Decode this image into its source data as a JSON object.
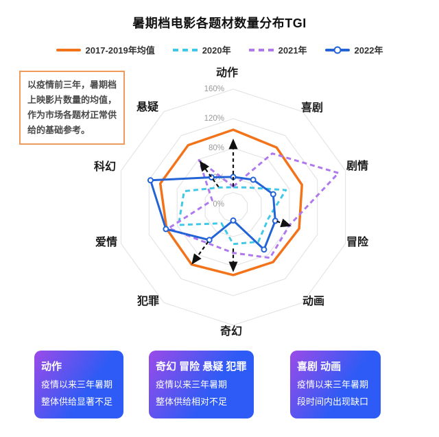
{
  "header": {
    "title": "暑期档电影各题材数量分布TGI"
  },
  "note": {
    "text": "以疫情前三年，暑期档上映影片数量的均值，作为市场各题材正常供给的基础参考。"
  },
  "legend": [
    {
      "label": "2017-2019年均值",
      "color": "#F2731A",
      "style": "solid"
    },
    {
      "label": "2020年",
      "color": "#41C8E8",
      "style": "dashed"
    },
    {
      "label": "2021年",
      "color": "#AE79EC",
      "style": "dashed"
    },
    {
      "label": "2022年",
      "color": "#2363D6",
      "style": "solid-marker"
    }
  ],
  "chart_data": {
    "type": "line",
    "subtype": "radar",
    "title": "暑期档电影各题材数量分布TGI",
    "categories": [
      "动作",
      "喜剧",
      "剧情",
      "冒险",
      "动画",
      "奇幻",
      "犯罪",
      "爱情",
      "科幻",
      "悬疑"
    ],
    "radial_ticks": [
      "0%",
      "40%",
      "80%",
      "120%",
      "160%"
    ],
    "radial_tick_values": [
      0,
      40,
      80,
      120,
      160
    ],
    "rmax": 160,
    "grid": "on",
    "legend_position": "top",
    "series": [
      {
        "name": "2017-2019年均值",
        "color": "#F2731A",
        "line": "solid",
        "marker": "none",
        "values": [
          105,
          100,
          98,
          94,
          92,
          92,
          96,
          95,
          104,
          104
        ]
      },
      {
        "name": "2020年",
        "color": "#41C8E8",
        "line": "dashed",
        "marker": "none",
        "values": [
          27,
          33,
          75,
          50,
          58,
          50,
          27,
          78,
          70,
          33
        ]
      },
      {
        "name": "2021年",
        "color": "#AE79EC",
        "line": "dashed",
        "marker": "none",
        "values": [
          28,
          90,
          150,
          80,
          85,
          62,
          60,
          92,
          30,
          79
        ]
      },
      {
        "name": "2022年",
        "color": "#2363D6",
        "line": "solid",
        "marker": "circle",
        "values": [
          41,
          46,
          57,
          60,
          71,
          18,
          55,
          96,
          118,
          50
        ]
      }
    ],
    "annotations": {
      "arrows": [
        {
          "category": "动作",
          "from": 28,
          "to": 90
        },
        {
          "category": "悬疑",
          "from": 34,
          "to": 75
        },
        {
          "category": "犯罪",
          "from": 58,
          "to": 93
        },
        {
          "category": "奇幻",
          "from": 56,
          "to": 85
        },
        {
          "category": "冒险",
          "from": 62,
          "to": 80
        }
      ],
      "arrow_color": "#111111"
    },
    "grid_color": "#E0E0E0",
    "tick_color": "#999999"
  },
  "cards": [
    {
      "title": "动作",
      "lines": [
        "疫情以来三年暑期",
        "整体供给显著不足"
      ]
    },
    {
      "title": "奇幻 冒险 悬疑 犯罪",
      "lines": [
        "疫情以来三年暑期",
        "整体供给相对不足"
      ]
    },
    {
      "title": "喜剧 动画",
      "lines": [
        "疫情以来三年暑期",
        "段时间内出现缺口"
      ]
    }
  ],
  "colors": {
    "note_border": "#F09A5A",
    "card_gradient_start": "#9B4BE8",
    "card_gradient_end": "#2E5BF5"
  }
}
